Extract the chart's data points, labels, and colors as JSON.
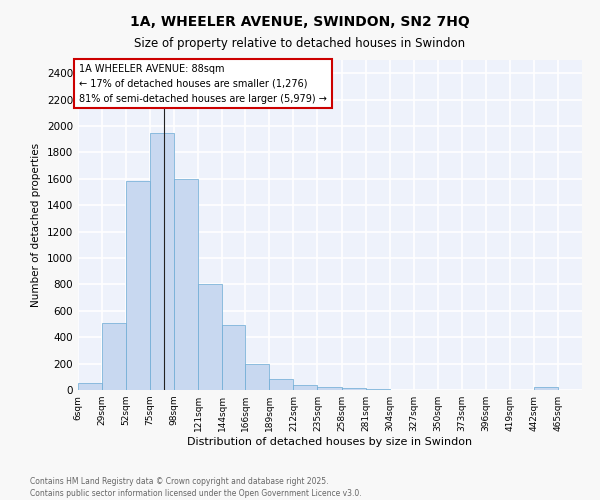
{
  "title1": "1A, WHEELER AVENUE, SWINDON, SN2 7HQ",
  "title2": "Size of property relative to detached houses in Swindon",
  "xlabel": "Distribution of detached houses by size in Swindon",
  "ylabel": "Number of detached properties",
  "bar_labels": [
    "6sqm",
    "29sqm",
    "52sqm",
    "75sqm",
    "98sqm",
    "121sqm",
    "144sqm",
    "166sqm",
    "189sqm",
    "212sqm",
    "235sqm",
    "258sqm",
    "281sqm",
    "304sqm",
    "327sqm",
    "350sqm",
    "373sqm",
    "396sqm",
    "419sqm",
    "442sqm",
    "465sqm"
  ],
  "bar_values": [
    50,
    510,
    1580,
    1950,
    1600,
    800,
    490,
    200,
    85,
    35,
    20,
    15,
    5,
    2,
    1,
    1,
    0,
    0,
    0,
    20,
    0
  ],
  "bar_color": "#c8d8f0",
  "bar_edge_color": "#6aaad4",
  "bg_color": "#eef2fb",
  "grid_color": "#ffffff",
  "annotation_text": "1A WHEELER AVENUE: 88sqm\n← 17% of detached houses are smaller (1,276)\n81% of semi-detached houses are larger (5,979) →",
  "annotation_box_color": "#ffffff",
  "annotation_border_color": "#cc0000",
  "property_line_x": 88,
  "ylim": [
    0,
    2500
  ],
  "yticks": [
    0,
    200,
    400,
    600,
    800,
    1000,
    1200,
    1400,
    1600,
    1800,
    2000,
    2200,
    2400
  ],
  "footer_text": "Contains HM Land Registry data © Crown copyright and database right 2025.\nContains public sector information licensed under the Open Government Licence v3.0.",
  "left_edges": [
    6,
    29,
    52,
    75,
    98,
    121,
    144,
    166,
    189,
    212,
    235,
    258,
    281,
    304,
    327,
    350,
    373,
    396,
    419,
    442,
    465
  ]
}
